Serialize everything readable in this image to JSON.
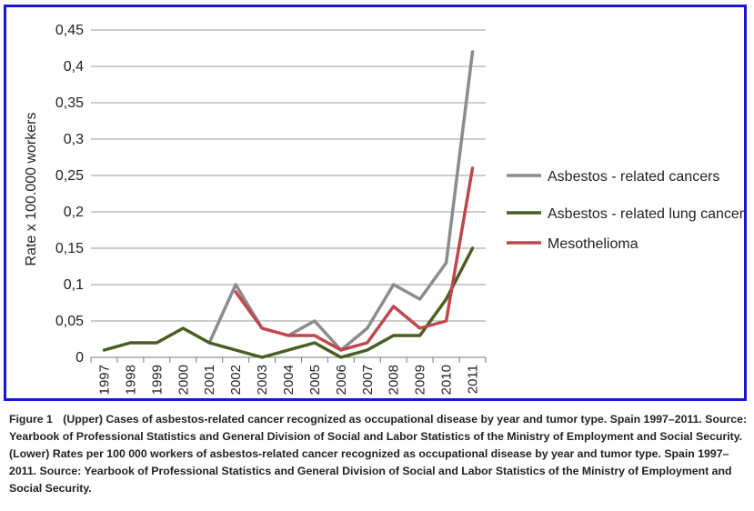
{
  "chart_data": {
    "type": "line",
    "title": "",
    "xlabel": "",
    "ylabel": "Rate x 100.000 workers",
    "ylim": [
      0,
      0.45
    ],
    "y_ticks": [
      "0",
      "0,05",
      "0,1",
      "0,15",
      "0,2",
      "0,25",
      "0,3",
      "0,35",
      "0,4",
      "0,45"
    ],
    "categories": [
      "1997",
      "1998",
      "1999",
      "2000",
      "2001",
      "2002",
      "2003",
      "2004",
      "2005",
      "2006",
      "2007",
      "2008",
      "2009",
      "2010",
      "2011"
    ],
    "series": [
      {
        "name": "Asbestos - related cancers",
        "color": "#8c8c8c",
        "values": [
          null,
          null,
          null,
          null,
          0.02,
          0.1,
          0.04,
          0.03,
          0.05,
          0.01,
          0.04,
          0.1,
          0.08,
          0.13,
          0.42
        ]
      },
      {
        "name": "Asbestos - related lung cancer",
        "color": "#4a5e22",
        "values": [
          0.01,
          0.02,
          0.02,
          0.04,
          0.02,
          0.01,
          0.0,
          0.01,
          0.02,
          0.0,
          0.01,
          0.03,
          0.03,
          0.08,
          0.15
        ]
      },
      {
        "name": "Mesothelioma",
        "color": "#c0474b",
        "values": [
          null,
          null,
          null,
          null,
          null,
          0.09,
          0.04,
          0.03,
          0.03,
          0.01,
          0.02,
          0.07,
          0.04,
          0.05,
          0.26
        ]
      }
    ],
    "grid": true,
    "legend_position": "right"
  },
  "caption": {
    "label": "Figure 1",
    "text": "(Upper) Cases of asbestos-related cancer recognized as occupational disease by year and tumor type. Spain 1997–2011. Source: Yearbook of Professional Statistics and General Division of Social and Labor Statistics of the Ministry of Employment and Social Security. (Lower) Rates per 100 000 workers of asbestos-related cancer recognized as occupational disease by year and tumor type. Spain 1997–2011. Source: Yearbook of Professional Statistics and General Division of Social and Labor Statistics of the Ministry of Employment and Social Security."
  }
}
